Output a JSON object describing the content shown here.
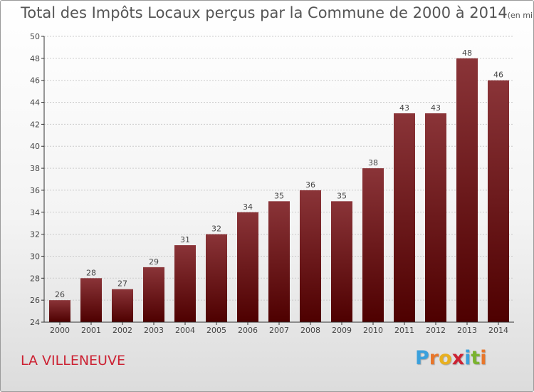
{
  "title": {
    "main": "Total des Impôts Locaux perçus par la Commune de 2000 à 2014",
    "unit": "(en milliers d'€)"
  },
  "commune": "LA VILLENEUVE",
  "logo": {
    "text": "Proxiti",
    "letter_colors": [
      "#3aa0dc",
      "#e8762a",
      "#e8b020",
      "#cc2233",
      "#3aa0dc",
      "#7ab32e",
      "#e8762a"
    ]
  },
  "colors": {
    "bar_top": "#8a3438",
    "bar_bottom": "#4e0000",
    "axis": "#333333",
    "grid": "#cccccc",
    "text": "#444444"
  },
  "chart_data": {
    "type": "bar",
    "categories": [
      "2000",
      "2001",
      "2002",
      "2003",
      "2004",
      "2005",
      "2006",
      "2007",
      "2008",
      "2009",
      "2010",
      "2011",
      "2012",
      "2013",
      "2014"
    ],
    "values": [
      26,
      28,
      27,
      29,
      31,
      32,
      34,
      35,
      36,
      35,
      38,
      43,
      43,
      48,
      46
    ],
    "data_labels": [
      "26",
      "28",
      "27",
      "29",
      "31",
      "32",
      "34",
      "35",
      "36",
      "35",
      "38",
      "43",
      "43",
      "48",
      "46"
    ],
    "ylim": [
      24,
      50
    ],
    "yticks": [
      "24",
      "26",
      "28",
      "30",
      "32",
      "34",
      "36",
      "38",
      "40",
      "42",
      "44",
      "46",
      "48",
      "50"
    ],
    "grid": true,
    "xlabel": "",
    "ylabel": ""
  }
}
